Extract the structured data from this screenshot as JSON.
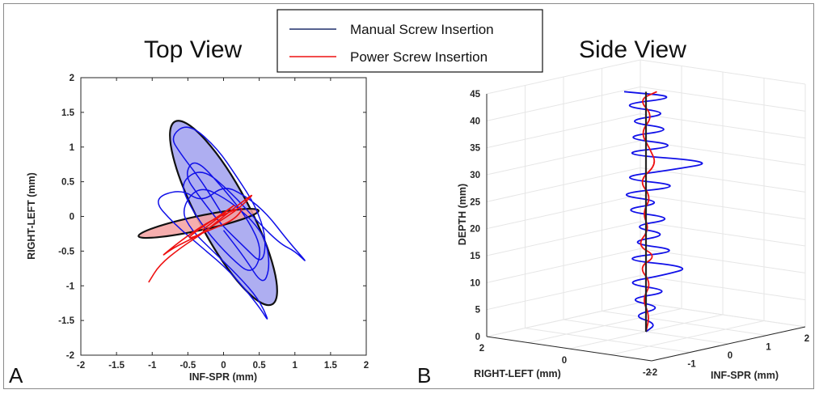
{
  "colors": {
    "manual": "#1010e8",
    "power": "#ee1111",
    "manual_fill": "#6b6be6",
    "power_fill": "#f4a0a0",
    "axis": "#262626",
    "grid": "#e6e6e6"
  },
  "legend": {
    "manual_label": "Manual Screw Insertion",
    "power_label": "Power Screw Insertion"
  },
  "panel_labels": {
    "a": "A",
    "b": "B"
  },
  "chart_data": [
    {
      "type": "line",
      "title": "Top View",
      "xlabel": "INF-SPR (mm)",
      "ylabel": "RIGHT-LEFT (mm)",
      "xlim": [
        -2,
        2
      ],
      "ylim": [
        -2,
        2
      ],
      "xticks": [
        "-2",
        "-1.5",
        "-1",
        "-0.5",
        "0",
        "0.5",
        "1",
        "1.5",
        "2"
      ],
      "yticks": [
        "-2",
        "-1.5",
        "-1",
        "-0.5",
        "0",
        "0.5",
        "1",
        "1.5",
        "2"
      ],
      "grid": false,
      "series": [
        {
          "name": "Manual Screw Insertion",
          "color_key": "manual",
          "x": [
            0.0,
            -0.3,
            -0.6,
            -0.75,
            -0.5,
            -0.1,
            0.2,
            0.45,
            0.6,
            0.55,
            0.3,
            -0.05,
            -0.35,
            -0.55,
            -0.4,
            0.0,
            0.35,
            0.55,
            0.4,
            0.1,
            -0.25,
            -0.5,
            -0.6,
            -0.3,
            0.1,
            0.5,
            0.8,
            1.0,
            1.2,
            0.9,
            0.6,
            0.3,
            0.0,
            -0.3,
            -0.6,
            -1.0,
            -0.7,
            -0.3,
            0.1,
            0.5,
            0.65,
            0.5,
            0.2,
            -0.15,
            -0.45,
            -0.6,
            -0.35,
            0.05,
            0.4,
            0.6,
            0.65,
            0.55,
            0.3,
            0.0
          ],
          "y": [
            0.0,
            0.5,
            0.9,
            1.15,
            1.35,
            1.0,
            0.55,
            0.15,
            -0.3,
            -0.7,
            -0.45,
            -0.1,
            0.3,
            0.6,
            0.85,
            0.4,
            -0.05,
            -0.5,
            -0.85,
            -0.6,
            -0.2,
            0.2,
            0.5,
            0.7,
            0.35,
            -0.1,
            -0.4,
            -0.5,
            -0.7,
            -0.35,
            0.05,
            0.3,
            0.45,
            0.2,
            0.4,
            0.25,
            -0.1,
            -0.45,
            -0.8,
            -1.3,
            -1.55,
            -1.2,
            -0.85,
            -0.5,
            -0.2,
            0.1,
            0.45,
            0.25,
            -0.05,
            -0.35,
            -0.75,
            -1.0,
            -0.6,
            -0.2
          ]
        },
        {
          "name": "Power Screw Insertion",
          "color_key": "power",
          "x": [
            -1.05,
            -0.9,
            -0.6,
            -0.3,
            0.0,
            0.25,
            0.45,
            0.2,
            -0.1,
            -0.4,
            -0.7,
            -0.9,
            -0.6,
            -0.25,
            0.05,
            0.3,
            0.15,
            -0.2,
            -0.55,
            -0.3,
            0.0,
            0.2,
            -0.05,
            -0.3
          ],
          "y": [
            -0.95,
            -0.7,
            -0.45,
            -0.25,
            0.0,
            0.2,
            0.35,
            0.1,
            -0.1,
            -0.3,
            -0.45,
            -0.6,
            -0.35,
            -0.1,
            0.05,
            0.15,
            -0.05,
            -0.2,
            -0.35,
            -0.15,
            0.05,
            0.2,
            0.0,
            -0.2
          ]
        }
      ],
      "ellipses": [
        {
          "series": "Manual Screw Insertion",
          "cx": 0.0,
          "cy": 0.05,
          "semi_major": 1.45,
          "semi_minor": 0.36,
          "angle_deg": -62
        },
        {
          "series": "Power Screw Insertion",
          "cx": -0.35,
          "cy": -0.1,
          "semi_major": 0.86,
          "semi_minor": 0.1,
          "angle_deg": 12
        }
      ]
    },
    {
      "type": "line",
      "title": "Side View",
      "xlabel": "INF-SPR (mm)",
      "ylabel": "RIGHT-LEFT (mm)",
      "zlabel": "DEPTH (mm)",
      "xlim": [
        -2,
        2
      ],
      "ylim": [
        -2,
        2
      ],
      "zlim": [
        0,
        45
      ],
      "xticks": [
        "-2",
        "-1",
        "0",
        "1",
        "2"
      ],
      "yticks": [
        "-2",
        "0",
        "2"
      ],
      "zticks": [
        "0",
        "5",
        "10",
        "15",
        "20",
        "25",
        "30",
        "35",
        "40",
        "45"
      ],
      "grid": true,
      "series": [
        {
          "name": "Manual Screw Insertion",
          "color_key": "manual",
          "depth": [
            0,
            1.5,
            3,
            4.5,
            6,
            7.5,
            9,
            10.5,
            12,
            13.5,
            15,
            16.5,
            18,
            19.5,
            21,
            22.5,
            24,
            25.5,
            27,
            28.5,
            30,
            31.5,
            33,
            34.5,
            36,
            37.5,
            39,
            40.5,
            42,
            43.5,
            44.5
          ],
          "offset": [
            0.0,
            0.3,
            -0.4,
            0.5,
            -0.6,
            0.8,
            -0.7,
            0.5,
            1.3,
            -0.9,
            1.1,
            -0.6,
            0.7,
            -0.5,
            0.9,
            -0.8,
            0.6,
            -1.0,
            1.2,
            -0.9,
            0.7,
            2.0,
            -1.0,
            1.1,
            -0.8,
            0.9,
            -0.7,
            0.8,
            -0.9,
            1.0,
            -0.6
          ]
        },
        {
          "name": "Power Screw Insertion",
          "color_key": "power",
          "depth": [
            0,
            3,
            6,
            9,
            12,
            14,
            16,
            19,
            22,
            25,
            28,
            31,
            34,
            37,
            40,
            43,
            44.5
          ],
          "offset": [
            0.0,
            0.1,
            -0.1,
            0.15,
            -0.2,
            0.3,
            -0.25,
            0.1,
            -0.1,
            0.15,
            -0.2,
            0.3,
            0.1,
            -0.15,
            0.2,
            -0.2,
            0.3
          ]
        },
        {
          "name": "",
          "color_key": "axis",
          "depth": [
            0,
            44.5
          ],
          "offset": [
            0,
            0
          ]
        }
      ]
    }
  ]
}
